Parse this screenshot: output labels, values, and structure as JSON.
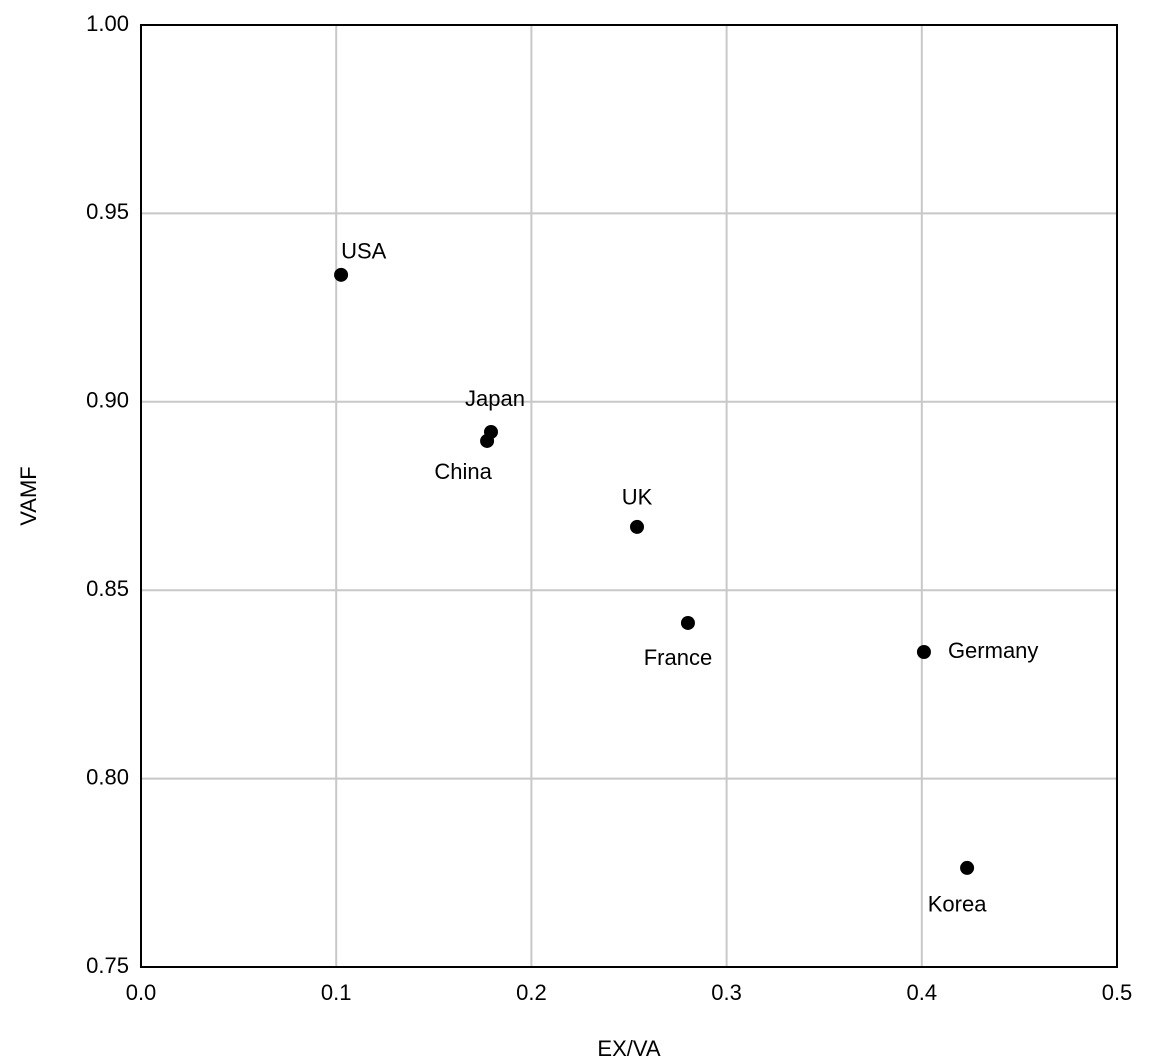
{
  "chart_data": {
    "type": "scatter",
    "x_label": "EX/VA",
    "y_label": "VAMF",
    "labels": [
      "USA",
      "Japan",
      "China",
      "UK",
      "France",
      "Germany",
      "Korea"
    ],
    "x": [
      0.1025,
      0.1793,
      0.1773,
      0.2541,
      0.2802,
      0.4011,
      0.4232
    ],
    "y": [
      0.9337,
      0.892,
      0.8896,
      0.8668,
      0.8413,
      0.8336,
      0.7763
    ],
    "color": "#000000",
    "xlim": [
      0,
      0.5
    ],
    "ylim": [
      0.75,
      1.0
    ],
    "xticks": [
      {
        "value": 0,
        "label": "0.0"
      },
      0.1,
      0.2,
      0.3,
      0.4,
      0.5
    ],
    "yticks": [
      0.75,
      {
        "value": 0.8,
        "label": "0.80"
      },
      0.85,
      {
        "value": 0.9,
        "label": "0.90"
      },
      0.95,
      {
        "value": 1.0,
        "label": "1.00"
      }
    ],
    "grid": true
  }
}
